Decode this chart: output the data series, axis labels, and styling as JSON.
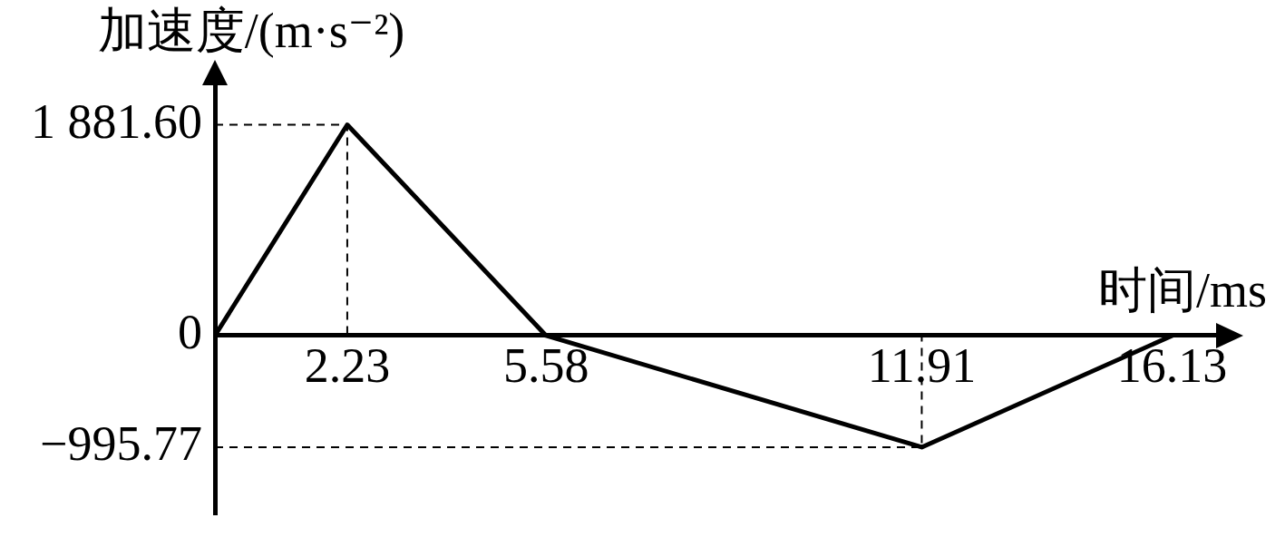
{
  "chart_data": {
    "type": "line",
    "xlabel": "时间/ms",
    "ylabel": "加速度/(m·s⁻²)",
    "x": [
      0,
      2.23,
      5.58,
      11.91,
      16.13
    ],
    "series": [
      {
        "color": "#000000",
        "values": [
          0,
          1881.6,
          0,
          -995.77,
          0
        ]
      },
      {
        "color": "#000000",
        "line_style": "dashed",
        "x": [
          0,
          2.23,
          2.23
        ],
        "values": [
          1881.6,
          1881.6,
          0
        ]
      },
      {
        "color": "#000000",
        "line_style": "dashed",
        "x": [
          0,
          11.91,
          11.91
        ],
        "values": [
          -995.77,
          -995.77,
          0
        ]
      }
    ],
    "xlim": [
      0,
      16.9
    ],
    "ylim": [
      -1600,
      2250
    ],
    "xticks": [
      2.23,
      5.58,
      11.91,
      16.13
    ],
    "yticks": [
      {
        "value": 1881.6,
        "label": "1 881.60"
      },
      0,
      {
        "value": -995.77,
        "label": "−995.77"
      }
    ],
    "grid": false,
    "legend": false,
    "marker": "none",
    "line_style": "solid"
  }
}
